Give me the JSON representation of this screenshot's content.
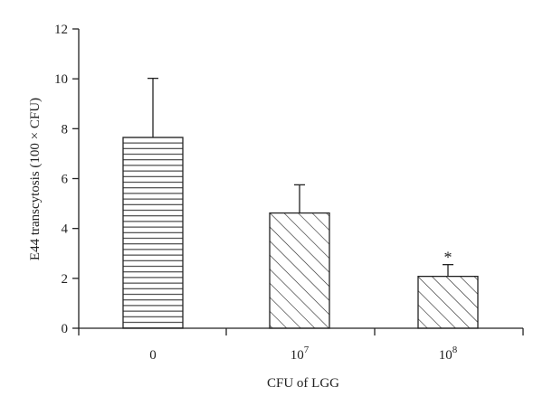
{
  "chart_data": {
    "type": "bar",
    "categories": [
      {
        "base": "0",
        "exp": ""
      },
      {
        "base": "10",
        "exp": "7"
      },
      {
        "base": "10",
        "exp": "8"
      }
    ],
    "values": [
      7.65,
      4.62,
      2.08
    ],
    "error_upper": [
      10.02,
      5.75,
      2.55
    ],
    "patterns": [
      "horizontal-lines",
      "diagonal-hatch",
      "diagonal-hatch"
    ],
    "annotations": [
      {
        "category_index": 2,
        "text": "*"
      }
    ],
    "ylabel": "E44 transcytosis (100 × CFU)",
    "xlabel": "CFU of LGG",
    "ylim": [
      0,
      12
    ],
    "yticks": [
      "0",
      "2",
      "4",
      "6",
      "8",
      "10",
      "12"
    ],
    "grid": false,
    "colors": {
      "axis": "#222222",
      "bar_fill": "#ffffff",
      "bar_stroke": "#222222"
    }
  }
}
